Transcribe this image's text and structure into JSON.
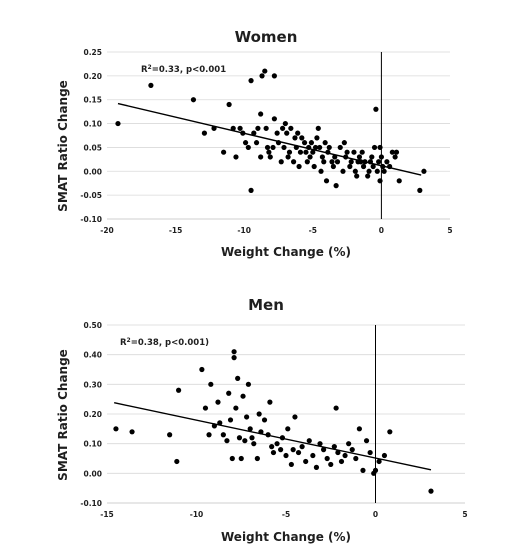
{
  "chart_data": [
    {
      "type": "scatter",
      "title": "Women",
      "xlabel": "Weight Change (%)",
      "ylabel": "SMAT Ratio Change",
      "xlim": [
        -20,
        5
      ],
      "ylim": [
        -0.1,
        0.25
      ],
      "xticks": [
        -20,
        -15,
        -10,
        -5,
        0,
        5
      ],
      "yticks": [
        -0.1,
        -0.05,
        0.0,
        0.05,
        0.1,
        0.15,
        0.2,
        0.25
      ],
      "ytick_labels": [
        "-0.10",
        "-0.05",
        "0.00",
        "0.05",
        "0.10",
        "0.15",
        "0.20",
        "0.25"
      ],
      "grid": true,
      "annotation_main": "R",
      "annotation_sup": "2",
      "annotation_rest": "=0.33,  p<0.001",
      "trendline": {
        "x": [
          -19.2,
          2.9
        ],
        "y": [
          0.142,
          -0.008
        ]
      },
      "x": [
        -19.2,
        -16.8,
        -13.7,
        -12.9,
        -12.2,
        -11.5,
        -11.1,
        -10.8,
        -10.6,
        -10.3,
        -10.1,
        -9.9,
        -9.7,
        -9.5,
        -9.5,
        -9.3,
        -9.1,
        -9.0,
        -8.8,
        -8.8,
        -8.7,
        -8.5,
        -8.4,
        -8.2,
        -8.1,
        -7.9,
        -7.8,
        -7.8,
        -7.6,
        -7.5,
        -7.3,
        -7.2,
        -7.1,
        -7.0,
        -6.9,
        -6.8,
        -6.7,
        -6.6,
        -6.4,
        -6.3,
        -6.2,
        -6.1,
        -6.0,
        -5.9,
        -5.8,
        -5.6,
        -5.5,
        -5.4,
        -5.3,
        -5.2,
        -5.1,
        -5.0,
        -4.9,
        -4.8,
        -4.6,
        -4.5,
        -4.4,
        -4.3,
        -4.2,
        -4.1,
        -4.0,
        -3.9,
        -3.8,
        -3.6,
        -3.5,
        -3.4,
        -3.2,
        -3.0,
        -2.8,
        -2.6,
        -2.5,
        -2.3,
        -2.2,
        -2.0,
        -1.9,
        -1.8,
        -1.7,
        -1.6,
        -1.4,
        -1.3,
        -1.2,
        -1.0,
        -0.9,
        -0.8,
        -0.7,
        -0.6,
        -0.5,
        -0.4,
        -0.3,
        -0.2,
        -0.1,
        -0.1,
        0.0,
        0.1,
        0.2,
        0.4,
        0.6,
        0.8,
        1.0,
        1.1,
        1.3,
        2.8,
        3.1,
        -1.5,
        -2.7,
        -4.7,
        -8.3,
        -3.3
      ],
      "y": [
        0.1,
        0.18,
        0.15,
        0.08,
        0.09,
        0.04,
        0.14,
        0.09,
        0.03,
        0.09,
        0.08,
        0.06,
        0.05,
        -0.04,
        0.19,
        0.08,
        0.06,
        0.09,
        0.03,
        0.12,
        0.2,
        0.21,
        0.09,
        0.04,
        0.03,
        0.05,
        0.2,
        0.11,
        0.08,
        0.06,
        0.02,
        0.09,
        0.05,
        0.1,
        0.08,
        0.03,
        0.04,
        0.09,
        0.02,
        0.07,
        0.05,
        0.08,
        0.01,
        0.04,
        0.07,
        0.06,
        0.04,
        0.02,
        0.05,
        0.03,
        0.06,
        0.04,
        0.01,
        0.05,
        0.09,
        0.05,
        0.0,
        0.03,
        0.02,
        0.06,
        -0.02,
        0.04,
        0.05,
        0.02,
        0.01,
        0.03,
        0.02,
        0.05,
        0.0,
        0.03,
        0.04,
        0.01,
        0.02,
        0.04,
        0.0,
        -0.01,
        0.02,
        0.03,
        0.04,
        0.01,
        0.02,
        -0.01,
        0.0,
        0.02,
        0.03,
        0.01,
        0.05,
        0.13,
        0.0,
        0.02,
        0.05,
        -0.02,
        0.03,
        0.01,
        0.0,
        0.02,
        0.01,
        0.04,
        0.03,
        0.04,
        -0.02,
        -0.04,
        0.0,
        0.02,
        0.06,
        0.07,
        0.05,
        -0.03
      ]
    },
    {
      "type": "scatter",
      "title": "Men",
      "xlabel": "Weight Change (%)",
      "ylabel": "SMAT Ratio Change",
      "xlim": [
        -15,
        5
      ],
      "ylim": [
        -0.1,
        0.5
      ],
      "xticks": [
        -15,
        -10,
        -5,
        0,
        5
      ],
      "yticks": [
        -0.1,
        0.0,
        0.1,
        0.2,
        0.3,
        0.4,
        0.5
      ],
      "ytick_labels": [
        "-0.10",
        "0.00",
        "0.10",
        "0.20",
        "0.30",
        "0.40",
        "0.50"
      ],
      "grid": true,
      "annotation_main": "R",
      "annotation_sup": "2",
      "annotation_rest": "=0.38,  p<0.001)",
      "trendline": {
        "x": [
          -14.6,
          3.1
        ],
        "y": [
          0.238,
          0.012
        ]
      },
      "x": [
        -14.5,
        -13.6,
        -11.5,
        -11.1,
        -11.0,
        -9.7,
        -9.5,
        -9.3,
        -9.2,
        -9.0,
        -8.8,
        -8.7,
        -8.5,
        -8.3,
        -8.2,
        -8.0,
        -7.9,
        -7.9,
        -7.8,
        -7.7,
        -7.6,
        -7.5,
        -7.4,
        -7.3,
        -7.2,
        -7.1,
        -7.0,
        -6.9,
        -6.8,
        -6.6,
        -6.4,
        -6.2,
        -6.0,
        -5.9,
        -5.7,
        -5.5,
        -5.3,
        -5.2,
        -5.0,
        -4.9,
        -4.7,
        -4.5,
        -4.3,
        -4.1,
        -3.9,
        -3.7,
        -3.5,
        -3.3,
        -3.1,
        -2.9,
        -2.7,
        -2.5,
        -2.3,
        -2.1,
        -1.9,
        -1.7,
        -1.5,
        -1.3,
        -1.1,
        -0.9,
        -0.7,
        -0.5,
        -0.3,
        -0.1,
        0.0,
        0.2,
        0.5,
        0.8,
        3.1,
        -4.6,
        -5.8,
        -6.5,
        -8.1,
        -2.2
      ],
      "y": [
        0.15,
        0.14,
        0.13,
        0.04,
        0.28,
        0.35,
        0.22,
        0.13,
        0.3,
        0.16,
        0.24,
        0.17,
        0.13,
        0.11,
        0.27,
        0.05,
        0.39,
        0.41,
        0.22,
        0.32,
        0.12,
        0.05,
        0.26,
        0.11,
        0.19,
        0.3,
        0.15,
        0.12,
        0.1,
        0.05,
        0.14,
        0.18,
        0.13,
        0.24,
        0.07,
        0.1,
        0.08,
        0.12,
        0.06,
        0.15,
        0.03,
        0.19,
        0.07,
        0.09,
        0.04,
        0.11,
        0.06,
        0.02,
        0.1,
        0.08,
        0.05,
        0.03,
        0.09,
        0.07,
        0.04,
        0.06,
        0.1,
        0.08,
        0.05,
        0.15,
        0.01,
        0.11,
        0.07,
        0.0,
        0.01,
        0.04,
        0.06,
        0.14,
        -0.06,
        0.08,
        0.09,
        0.2,
        0.18,
        0.22
      ]
    }
  ]
}
